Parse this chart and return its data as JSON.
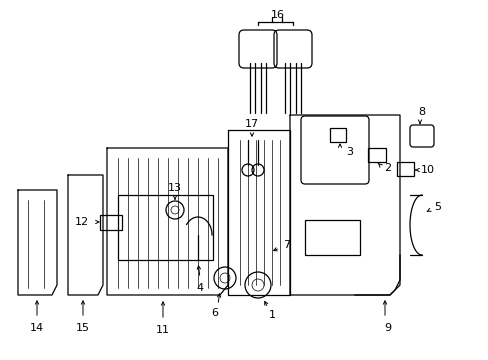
{
  "background": "#ffffff",
  "line_color": "#000000",
  "figsize": [
    4.89,
    3.6
  ],
  "dpi": 100,
  "lw": 0.9,
  "arrow_scale": 5,
  "font_size": 7.5
}
